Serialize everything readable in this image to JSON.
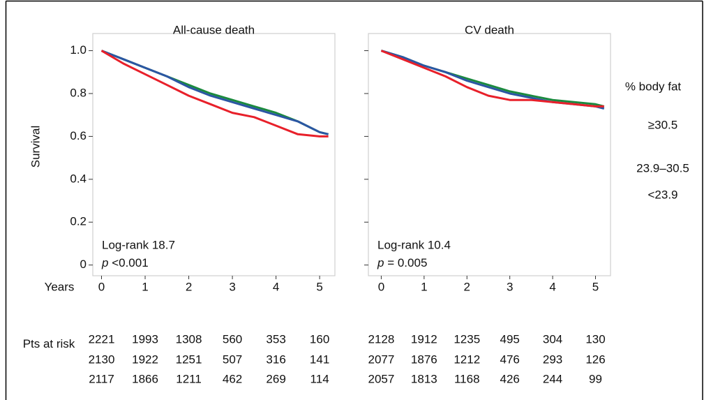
{
  "legend": {
    "title": "% body fat",
    "entries": [
      "≥30.5",
      "23.9–30.5",
      "<23.9"
    ]
  },
  "x_label": "Years",
  "risk_label": "Pts at risk",
  "chart_data": [
    {
      "type": "line",
      "title": "All-cause death",
      "y_label": "Survival",
      "annotation": "Log-rank 18.7",
      "p_symbol": "p",
      "p_value": "<0.001",
      "x": [
        0,
        0.5,
        1,
        1.5,
        2,
        2.5,
        3,
        3.5,
        4,
        4.5,
        5,
        5.2
      ],
      "xlim": [
        -0.2,
        5.35
      ],
      "xticks": [
        0,
        1,
        2,
        3,
        4,
        5
      ],
      "ylim": [
        -0.05,
        1.08
      ],
      "yticks": [
        0,
        {
          "value": 0.2,
          "label": "0.2"
        },
        {
          "value": 0.4,
          "label": "0.4"
        },
        {
          "value": 0.6,
          "label": "0.6"
        },
        {
          "value": 0.8,
          "label": "0.8"
        },
        {
          "value": 1,
          "label": "1.0"
        }
      ],
      "show_ytick_labels": true,
      "series": [
        {
          "color": "#1b8a3e",
          "values": [
            1.0,
            0.96,
            0.92,
            0.88,
            0.84,
            0.8,
            0.77,
            0.74,
            0.71,
            0.67,
            0.62,
            0.61
          ],
          "at_risk": [
            2221,
            1993,
            1308,
            560,
            353,
            160
          ]
        },
        {
          "color": "#2b56a3",
          "values": [
            1.0,
            0.96,
            0.92,
            0.88,
            0.83,
            0.79,
            0.76,
            0.73,
            0.7,
            0.67,
            0.62,
            0.61
          ],
          "at_risk": [
            2130,
            1922,
            1251,
            507,
            316,
            141
          ]
        },
        {
          "color": "#e8202a",
          "values": [
            1.0,
            0.94,
            0.89,
            0.84,
            0.79,
            0.75,
            0.71,
            0.69,
            0.65,
            0.61,
            0.6,
            0.6
          ],
          "at_risk": [
            2117,
            1866,
            1211,
            462,
            269,
            114
          ]
        }
      ]
    },
    {
      "type": "line",
      "title": "CV death",
      "annotation": "Log-rank 10.4",
      "p_symbol": "p",
      "p_value": "= 0.005",
      "x": [
        0,
        0.5,
        1,
        1.5,
        2,
        2.5,
        3,
        3.5,
        4,
        4.5,
        5,
        5.2
      ],
      "xlim": [
        -0.3,
        5.35
      ],
      "xticks": [
        0,
        1,
        2,
        3,
        4,
        5
      ],
      "ylim": [
        -0.05,
        1.08
      ],
      "yticks": [
        0,
        0.2,
        0.4,
        0.6,
        0.8,
        1
      ],
      "show_ytick_labels": false,
      "series": [
        {
          "color": "#1b8a3e",
          "values": [
            1.0,
            0.97,
            0.93,
            0.9,
            0.87,
            0.84,
            0.81,
            0.79,
            0.77,
            0.76,
            0.75,
            0.74
          ],
          "at_risk": [
            2128,
            1912,
            1235,
            495,
            304,
            130
          ]
        },
        {
          "color": "#2b56a3",
          "values": [
            1.0,
            0.97,
            0.93,
            0.9,
            0.86,
            0.83,
            0.8,
            0.78,
            0.76,
            0.75,
            0.74,
            0.73
          ],
          "at_risk": [
            2077,
            1876,
            1212,
            476,
            293,
            126
          ]
        },
        {
          "color": "#e8202a",
          "values": [
            1.0,
            0.96,
            0.92,
            0.88,
            0.83,
            0.79,
            0.77,
            0.77,
            0.76,
            0.75,
            0.74,
            0.74
          ],
          "at_risk": [
            2057,
            1813,
            1168,
            426,
            244,
            99
          ]
        }
      ]
    }
  ]
}
